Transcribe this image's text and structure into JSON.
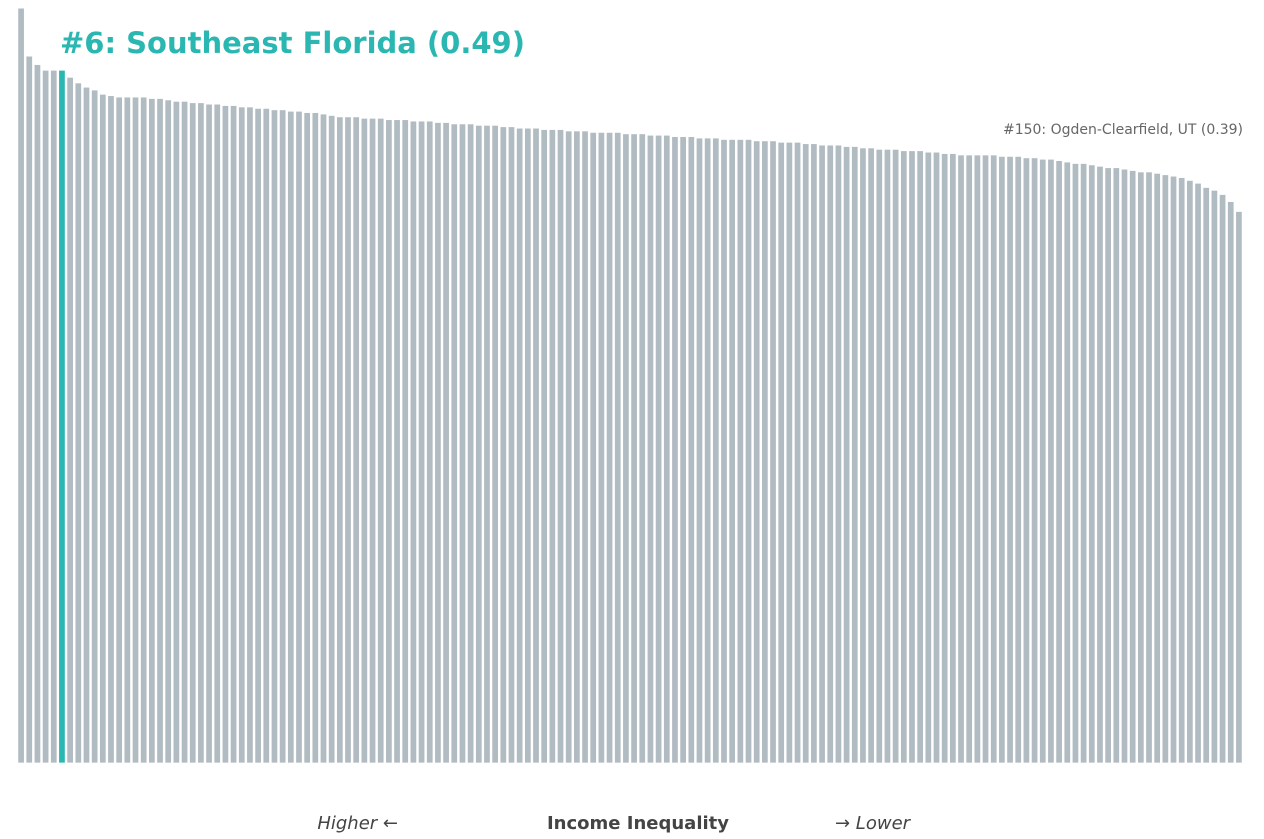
{
  "chart_data": {
    "type": "bar",
    "values": [
      0.534,
      0.5,
      0.494,
      0.49,
      0.49,
      0.49,
      0.485,
      0.481,
      0.478,
      0.476,
      0.473,
      0.472,
      0.471,
      0.471,
      0.471,
      0.471,
      0.47,
      0.47,
      0.469,
      0.468,
      0.468,
      0.467,
      0.467,
      0.466,
      0.466,
      0.465,
      0.465,
      0.464,
      0.464,
      0.463,
      0.463,
      0.462,
      0.462,
      0.461,
      0.461,
      0.46,
      0.46,
      0.459,
      0.458,
      0.457,
      0.457,
      0.457,
      0.456,
      0.456,
      0.456,
      0.455,
      0.455,
      0.455,
      0.454,
      0.454,
      0.454,
      0.453,
      0.453,
      0.452,
      0.452,
      0.452,
      0.451,
      0.451,
      0.451,
      0.45,
      0.45,
      0.449,
      0.449,
      0.449,
      0.448,
      0.448,
      0.448,
      0.447,
      0.447,
      0.447,
      0.446,
      0.446,
      0.446,
      0.446,
      0.445,
      0.445,
      0.445,
      0.444,
      0.444,
      0.444,
      0.443,
      0.443,
      0.443,
      0.442,
      0.442,
      0.442,
      0.441,
      0.441,
      0.441,
      0.441,
      0.44,
      0.44,
      0.44,
      0.439,
      0.439,
      0.439,
      0.438,
      0.438,
      0.437,
      0.437,
      0.437,
      0.436,
      0.436,
      0.435,
      0.435,
      0.434,
      0.434,
      0.434,
      0.433,
      0.433,
      0.433,
      0.432,
      0.432,
      0.431,
      0.431,
      0.43,
      0.43,
      0.43,
      0.43,
      0.43,
      0.429,
      0.429,
      0.429,
      0.428,
      0.428,
      0.427,
      0.427,
      0.426,
      0.425,
      0.424,
      0.424,
      0.423,
      0.422,
      0.421,
      0.421,
      0.42,
      0.419,
      0.418,
      0.418,
      0.417,
      0.416,
      0.415,
      0.414,
      0.412,
      0.41,
      0.407,
      0.405,
      0.402,
      0.397,
      0.39
    ],
    "color": "#b1bcc2",
    "highlight": {
      "index": 5,
      "color": "#2ab7b1"
    },
    "ylim": [
      -0.03,
      0.54
    ],
    "annotations": [
      "#6: Southeast Florida (0.49)",
      "#150: Ogden-Clearfield, UT (0.39)"
    ],
    "x_label": "Income Inequality",
    "x_label_left": "Higher ←",
    "x_label_right": "→ Lower"
  }
}
